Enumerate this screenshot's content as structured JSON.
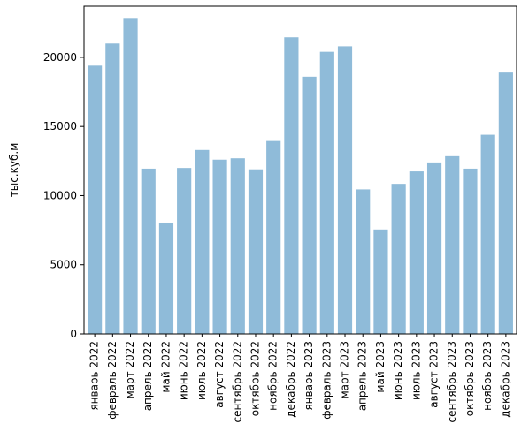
{
  "chart_data": {
    "type": "bar",
    "title": "",
    "xlabel": "",
    "ylabel": "тыс.куб.м",
    "ylim": [
      0,
      23700
    ],
    "yticks": [
      0,
      5000,
      10000,
      15000,
      20000
    ],
    "grid": false,
    "legend": "none",
    "colors": {
      "bar": "#1f77b4",
      "bar_opacity": 0.5,
      "axis": "#000000",
      "background": "#ffffff"
    },
    "categories": [
      "январь 2022",
      "февраль 2022",
      "март 2022",
      "апрель 2022",
      "май 2022",
      "июнь 2022",
      "июль 2022",
      "август 2022",
      "сентябрь 2022",
      "октябрь 2022",
      "ноябрь 2022",
      "декабрь 2022",
      "январь 2023",
      "февраль 2023",
      "март 2023",
      "апрель 2023",
      "май 2023",
      "июнь 2023",
      "июль 2023",
      "август 2023",
      "сентябрь 2023",
      "октябрь 2023",
      "ноябрь 2023",
      "декабрь 2023"
    ],
    "values": [
      19400,
      21000,
      22850,
      11950,
      8050,
      12000,
      13300,
      12600,
      12700,
      11900,
      13950,
      21450,
      18600,
      20400,
      20800,
      10450,
      7550,
      10850,
      11750,
      12400,
      12850,
      11950,
      14400,
      18900
    ]
  }
}
